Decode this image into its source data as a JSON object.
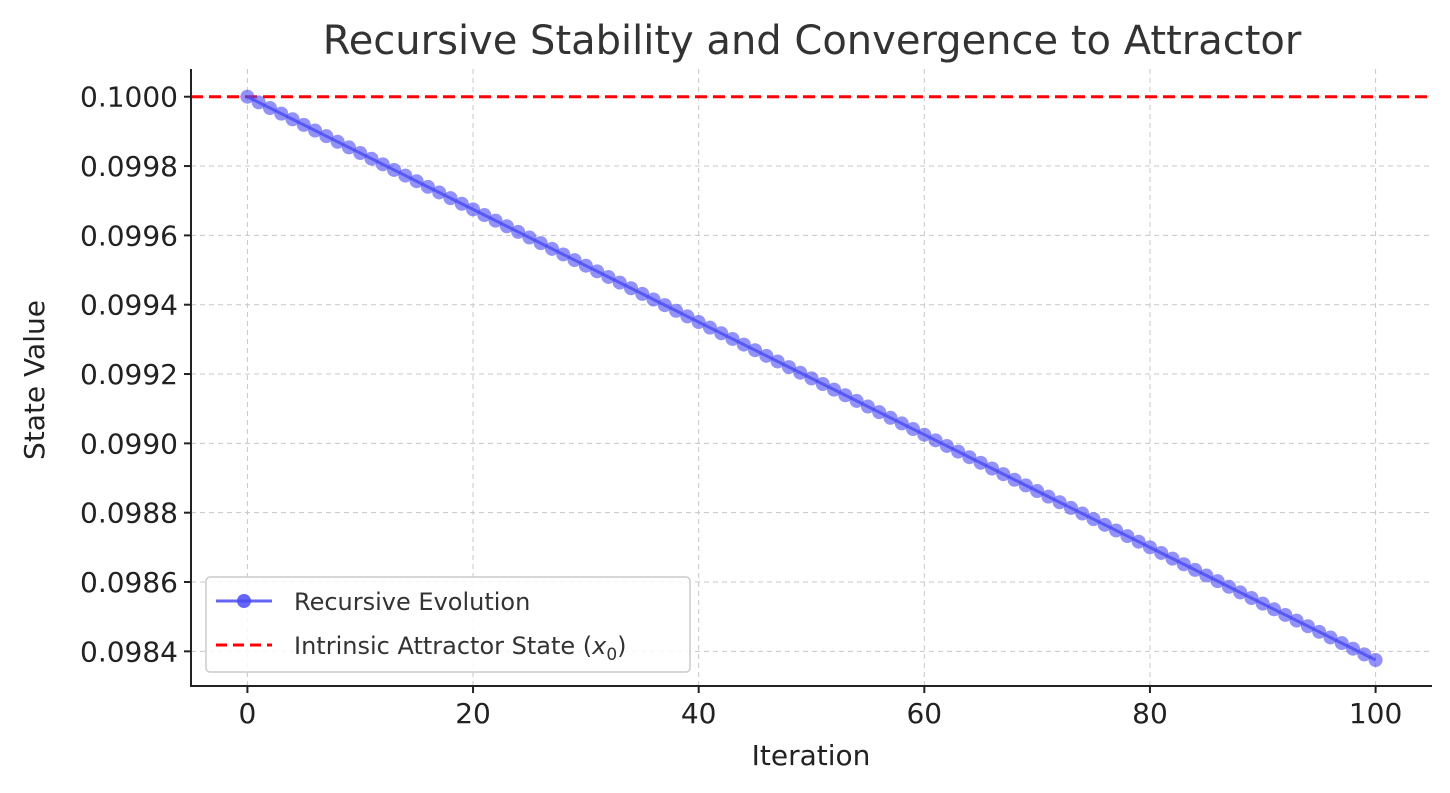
{
  "chart_data": {
    "type": "line",
    "title": "Recursive Stability and Convergence to Attractor",
    "xlabel": "Iteration",
    "ylabel": "State Value",
    "xlim": [
      -5,
      105
    ],
    "ylim": [
      0.0983,
      0.10008
    ],
    "xticks": [
      0,
      20,
      40,
      60,
      80,
      100
    ],
    "xtick_labels": [
      "0",
      "20",
      "40",
      "60",
      "80",
      "100"
    ],
    "yticks": [
      0.0984,
      0.0986,
      0.0988,
      0.099,
      0.0992,
      0.0994,
      0.0996,
      0.0998,
      0.1
    ],
    "ytick_labels": [
      "0.0984",
      "0.0986",
      "0.0988",
      "0.0990",
      "0.0992",
      "0.0994",
      "0.0996",
      "0.0998",
      "0.1000"
    ],
    "grid": true,
    "legend_position": "lower-left",
    "series": [
      {
        "name": "Recursive Evolution",
        "style": "line-with-markers",
        "color": "#4a4af5",
        "x_start": 0,
        "x_end": 100,
        "x_step": 1,
        "y_start": 0.1,
        "y_end": 0.098375
      }
    ],
    "reference_lines": [
      {
        "name": "Intrinsic Attractor State (x₀)",
        "name_prefix": "Intrinsic Attractor State (",
        "name_symbol": "x",
        "name_subscript": "0",
        "name_suffix": ")",
        "orientation": "horizontal",
        "value": 0.1,
        "color": "#ff0000",
        "style": "dashed"
      }
    ]
  }
}
